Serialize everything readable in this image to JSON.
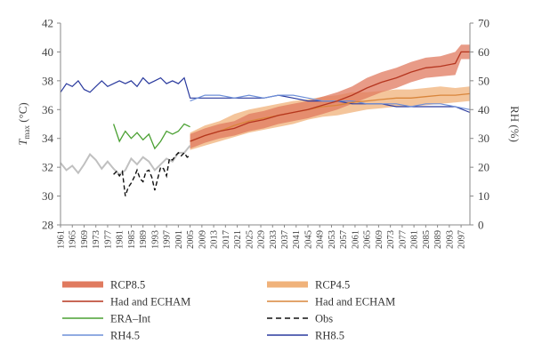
{
  "chart_data": {
    "type": "line",
    "x_ticks": [
      "1961",
      "1965",
      "1969",
      "1973",
      "1977",
      "1981",
      "1985",
      "1989",
      "1993",
      "1997",
      "2001",
      "2005",
      "2009",
      "2013",
      "2017",
      "2021",
      "2025",
      "2029",
      "2033",
      "2037",
      "2041",
      "2045",
      "2049",
      "2053",
      "2057",
      "2061",
      "2065",
      "2069",
      "2073",
      "2077",
      "2081",
      "2085",
      "2089",
      "2093",
      "2097"
    ],
    "xlim": [
      1961,
      2100
    ],
    "y_left": {
      "label_main": "T",
      "label_sub": "max",
      "label_unit": " (°C)",
      "ticks": [
        "28",
        "30",
        "32",
        "34",
        "36",
        "38",
        "40",
        "42"
      ],
      "lim": [
        28,
        42
      ]
    },
    "y_right": {
      "label": "RH (%)",
      "ticks": [
        "0",
        "10",
        "20",
        "30",
        "40",
        "50",
        "60",
        "70"
      ],
      "lim": [
        0,
        70
      ]
    },
    "legend_position": "bottom",
    "colors": {
      "rcp85_band": "#e07a5f",
      "rcp85_line": "#b5351f",
      "rcp45_band": "#f0b27a",
      "rcp45_line": "#d9853b",
      "era_int": "#4aa032",
      "obs": "#111111",
      "rh45": "#6d8fd8",
      "rh85": "#2a3a9e",
      "hist_grey": "#c0c0c0"
    },
    "legend": [
      {
        "key": "rcp85_band",
        "label": "RCP8.5"
      },
      {
        "key": "rcp45_band",
        "label": "RCP4.5"
      },
      {
        "key": "rcp85_line",
        "label": "Had and ECHAM"
      },
      {
        "key": "rcp45_line",
        "label": "Had and ECHAM"
      },
      {
        "key": "era_int",
        "label": "ERA–Int"
      },
      {
        "key": "obs",
        "label": "Obs"
      },
      {
        "key": "rh45",
        "label": "RH4.5"
      },
      {
        "key": "rh85",
        "label": "RH8.5"
      }
    ],
    "series": {
      "historical_tmax": {
        "x": [
          1961,
          1963,
          1965,
          1967,
          1969,
          1971,
          1973,
          1975,
          1977,
          1979,
          1981,
          1983,
          1985,
          1987,
          1989,
          1991,
          1993,
          1995,
          1997,
          1999,
          2001,
          2003,
          2005
        ],
        "y": [
          32.3,
          31.8,
          32.1,
          31.6,
          32.2,
          32.9,
          32.5,
          31.9,
          32.4,
          31.9,
          31.5,
          31.8,
          32.6,
          32.2,
          32.7,
          32.4,
          31.8,
          32.2,
          32.6,
          32.4,
          33.0,
          33.0,
          33.5
        ]
      },
      "rcp85_tmax": {
        "x": [
          2005,
          2010,
          2015,
          2020,
          2025,
          2030,
          2035,
          2040,
          2045,
          2050,
          2055,
          2060,
          2065,
          2070,
          2075,
          2080,
          2085,
          2090,
          2095,
          2097,
          2100
        ],
        "y": [
          33.8,
          34.2,
          34.5,
          34.7,
          35.1,
          35.3,
          35.6,
          35.8,
          36.0,
          36.3,
          36.6,
          37.0,
          37.5,
          37.9,
          38.2,
          38.6,
          38.9,
          39.0,
          39.2,
          40.0,
          40.0
        ],
        "band": [
          0.5,
          0.5,
          0.5,
          0.5,
          0.6,
          0.6,
          0.6,
          0.6,
          0.6,
          0.6,
          0.6,
          0.6,
          0.7,
          0.7,
          0.7,
          0.7,
          0.7,
          0.7,
          0.8,
          0.5,
          0.5
        ]
      },
      "rcp45_tmax": {
        "x": [
          2005,
          2010,
          2015,
          2020,
          2025,
          2030,
          2035,
          2040,
          2045,
          2050,
          2055,
          2060,
          2065,
          2070,
          2075,
          2080,
          2085,
          2090,
          2095,
          2100
        ],
        "y": [
          33.8,
          34.2,
          34.5,
          34.9,
          35.2,
          35.4,
          35.6,
          35.8,
          36.0,
          36.2,
          36.3,
          36.5,
          36.6,
          36.7,
          36.8,
          36.8,
          36.9,
          37.0,
          37.0,
          37.1
        ],
        "band": [
          0.6,
          0.7,
          0.7,
          0.8,
          0.8,
          0.8,
          0.8,
          0.8,
          0.7,
          0.7,
          0.7,
          0.7,
          0.6,
          0.6,
          0.6,
          0.6,
          0.6,
          0.6,
          0.5,
          0.5
        ]
      },
      "era_int_tmax": {
        "x": [
          1979,
          1981,
          1983,
          1985,
          1987,
          1989,
          1991,
          1993,
          1995,
          1997,
          1999,
          2001,
          2003,
          2005
        ],
        "y": [
          35.0,
          33.8,
          34.5,
          34.0,
          34.4,
          33.9,
          34.3,
          33.3,
          33.8,
          34.5,
          34.3,
          34.5,
          35.0,
          34.8
        ]
      },
      "obs_tmax": {
        "x": [
          1979,
          1980,
          1981,
          1982,
          1983,
          1984,
          1985,
          1986,
          1987,
          1988,
          1989,
          1990,
          1991,
          1992,
          1993,
          1994,
          1995,
          1996,
          1997,
          1998,
          1999,
          2000,
          2001,
          2002,
          2003,
          2004,
          2005
        ],
        "y": [
          31.5,
          31.7,
          31.4,
          31.7,
          30.0,
          30.6,
          30.9,
          31.3,
          31.8,
          31.2,
          31.0,
          31.7,
          31.8,
          31.3,
          30.4,
          31.2,
          32.0,
          31.9,
          31.4,
          32.6,
          32.5,
          32.8,
          33.0,
          32.8,
          33.0,
          32.7,
          32.8
        ]
      },
      "rh45": {
        "x": [
          2005,
          2010,
          2015,
          2020,
          2025,
          2030,
          2035,
          2040,
          2045,
          2050,
          2055,
          2060,
          2065,
          2070,
          2075,
          2080,
          2085,
          2090,
          2095,
          2100
        ],
        "y": [
          43,
          45,
          45,
          44,
          45,
          44,
          45,
          45,
          44,
          43,
          43,
          43,
          42,
          42,
          42,
          41,
          42,
          42,
          41,
          40
        ]
      },
      "rh85": {
        "x": [
          1961,
          1963,
          1965,
          1967,
          1969,
          1971,
          1973,
          1975,
          1977,
          1979,
          1981,
          1983,
          1985,
          1987,
          1989,
          1991,
          1993,
          1995,
          1997,
          1999,
          2001,
          2003,
          2005,
          2010,
          2015,
          2020,
          2025,
          2030,
          2035,
          2040,
          2045,
          2050,
          2055,
          2060,
          2065,
          2070,
          2075,
          2080,
          2085,
          2090,
          2095,
          2100
        ],
        "y": [
          46,
          49,
          48,
          50,
          47,
          46,
          48,
          50,
          48,
          49,
          50,
          49,
          50,
          48,
          51,
          49,
          50,
          51,
          49,
          50,
          49,
          51,
          44,
          44,
          44,
          44,
          44,
          44,
          45,
          44,
          43,
          43,
          43,
          42,
          42,
          42,
          41,
          41,
          41,
          41,
          41,
          39
        ]
      }
    }
  }
}
